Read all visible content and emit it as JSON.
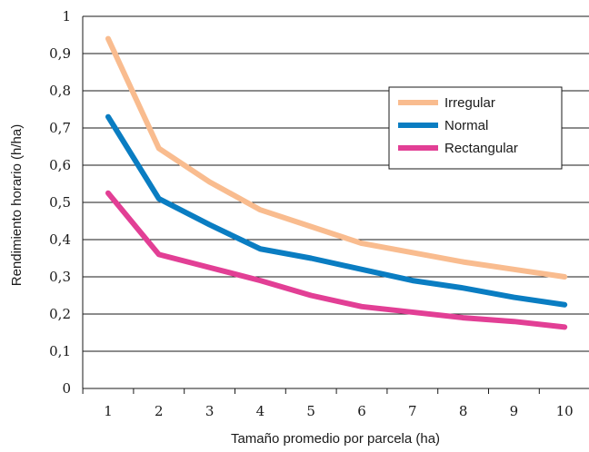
{
  "chart_data": {
    "type": "line",
    "title": "",
    "xlabel": "Tamaño promedio por parcela (ha)",
    "ylabel": "Rendimiento horario (h/ha)",
    "x": [
      1,
      2,
      3,
      4,
      5,
      6,
      7,
      8,
      9,
      10
    ],
    "x_tick_labels": [
      "1",
      "2",
      "3",
      "4",
      "5",
      "6",
      "7",
      "8",
      "9",
      "10"
    ],
    "y_tick_labels": [
      "0",
      "0,1",
      "0,2",
      "0,3",
      "0,4",
      "0,5",
      "0,6",
      "0,7",
      "0,8",
      "0,9",
      "1"
    ],
    "y_ticks": [
      0,
      0.1,
      0.2,
      0.3,
      0.4,
      0.5,
      0.6,
      0.7,
      0.8,
      0.9,
      1
    ],
    "ylim": [
      0,
      1
    ],
    "xlim": [
      0.5,
      10.5
    ],
    "grid": "horizontal",
    "legend_position": "top-right",
    "series": [
      {
        "name": "Irregular",
        "color": "#f9bc8f",
        "values": [
          0.94,
          0.645,
          0.555,
          0.48,
          0.435,
          0.39,
          0.365,
          0.34,
          0.32,
          0.3
        ]
      },
      {
        "name": "Normal",
        "color": "#0a7dc2",
        "values": [
          0.73,
          0.51,
          0.44,
          0.375,
          0.35,
          0.32,
          0.29,
          0.27,
          0.245,
          0.225
        ]
      },
      {
        "name": "Rectangular",
        "color": "#e23f95",
        "values": [
          0.525,
          0.36,
          0.325,
          0.29,
          0.25,
          0.22,
          0.205,
          0.19,
          0.18,
          0.165
        ]
      }
    ]
  }
}
